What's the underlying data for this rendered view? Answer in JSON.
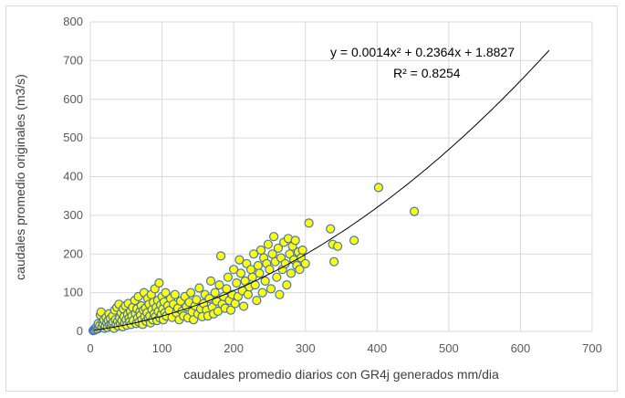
{
  "chart_data": {
    "type": "scatter",
    "xlabel": "caudales  promedio diarios con GR4j generados mm/dia",
    "ylabel": "caudales promedio  originales (m3/s)",
    "xlim": [
      0,
      700
    ],
    "ylim": [
      0,
      800
    ],
    "x_ticks": [
      "0",
      "100",
      "200",
      "300",
      "400",
      "500",
      "600",
      "700"
    ],
    "y_ticks": [
      "0",
      "100",
      "200",
      "300",
      "400",
      "500",
      "600",
      "700",
      "800"
    ],
    "grid": true,
    "legend": "none",
    "colors": {
      "marker_fill": "#ffff00",
      "marker_stroke": "#4472c4",
      "trend": "#000000",
      "grid": "#d9d9d9"
    },
    "trendline": {
      "type": "polynomial",
      "coefficients": [
        0.0014,
        0.2364,
        1.8827
      ],
      "x_range": [
        5,
        640
      ],
      "equation_text": "y = 0.0014x² + 0.2364x + 1.8827",
      "r2_text": "R² = 0.8254"
    },
    "series": [
      {
        "points": [
          [
            4,
            2
          ],
          [
            5,
            4
          ],
          [
            6,
            3
          ],
          [
            7,
            8
          ],
          [
            8,
            5
          ],
          [
            9,
            12
          ],
          [
            10,
            6
          ],
          [
            11,
            20
          ],
          [
            12,
            9
          ],
          [
            13,
            15
          ],
          [
            14,
            42
          ],
          [
            15,
            50
          ],
          [
            16,
            11
          ],
          [
            17,
            25
          ],
          [
            18,
            18
          ],
          [
            19,
            30
          ],
          [
            20,
            8
          ],
          [
            21,
            14
          ],
          [
            22,
            36
          ],
          [
            23,
            22
          ],
          [
            24,
            10
          ],
          [
            25,
            28
          ],
          [
            26,
            45
          ],
          [
            27,
            16
          ],
          [
            28,
            33
          ],
          [
            29,
            12
          ],
          [
            30,
            20
          ],
          [
            31,
            40
          ],
          [
            32,
            24
          ],
          [
            33,
            8
          ],
          [
            34,
            55
          ],
          [
            35,
            30
          ],
          [
            36,
            18
          ],
          [
            37,
            62
          ],
          [
            38,
            26
          ],
          [
            39,
            14
          ],
          [
            40,
            70
          ],
          [
            41,
            35
          ],
          [
            42,
            20
          ],
          [
            43,
            48
          ],
          [
            44,
            28
          ],
          [
            45,
            12
          ],
          [
            46,
            58
          ],
          [
            47,
            38
          ],
          [
            48,
            22
          ],
          [
            49,
            66
          ],
          [
            50,
            30
          ],
          [
            51,
            16
          ],
          [
            52,
            44
          ],
          [
            53,
            72
          ],
          [
            54,
            34
          ],
          [
            55,
            25
          ],
          [
            56,
            52
          ],
          [
            57,
            18
          ],
          [
            58,
            40
          ],
          [
            59,
            62
          ],
          [
            60,
            28
          ],
          [
            62,
            80
          ],
          [
            63,
            46
          ],
          [
            64,
            20
          ],
          [
            65,
            58
          ],
          [
            66,
            35
          ],
          [
            67,
            90
          ],
          [
            68,
            24
          ],
          [
            69,
            50
          ],
          [
            70,
            42
          ],
          [
            71,
            66
          ],
          [
            72,
            30
          ],
          [
            73,
            18
          ],
          [
            74,
            55
          ],
          [
            75,
            100
          ],
          [
            76,
            38
          ],
          [
            77,
            60
          ],
          [
            78,
            26
          ],
          [
            79,
            48
          ],
          [
            80,
            85
          ],
          [
            81,
            34
          ],
          [
            82,
            70
          ],
          [
            83,
            40
          ],
          [
            84,
            22
          ],
          [
            85,
            95
          ],
          [
            86,
            56
          ],
          [
            87,
            30
          ],
          [
            88,
            75
          ],
          [
            89,
            45
          ],
          [
            90,
            110
          ],
          [
            91,
            38
          ],
          [
            92,
            62
          ],
          [
            93,
            28
          ],
          [
            94,
            80
          ],
          [
            95,
            52
          ],
          [
            96,
            125
          ],
          [
            97,
            35
          ],
          [
            98,
            68
          ],
          [
            99,
            44
          ],
          [
            100,
            90
          ],
          [
            101,
            58
          ],
          [
            102,
            30
          ],
          [
            103,
            76
          ],
          [
            104,
            48
          ],
          [
            105,
            100
          ],
          [
            106,
            40
          ],
          [
            108,
            66
          ],
          [
            110,
            54
          ],
          [
            112,
            85
          ],
          [
            114,
            36
          ],
          [
            116,
            70
          ],
          [
            118,
            95
          ],
          [
            120,
            48
          ],
          [
            122,
            60
          ],
          [
            124,
            30
          ],
          [
            126,
            78
          ],
          [
            128,
            52
          ],
          [
            130,
            40
          ],
          [
            132,
            90
          ],
          [
            134,
            64
          ],
          [
            136,
            35
          ],
          [
            138,
            75
          ],
          [
            140,
            100
          ],
          [
            142,
            50
          ],
          [
            144,
            30
          ],
          [
            146,
            66
          ],
          [
            148,
            82
          ],
          [
            150,
            45
          ],
          [
            152,
            112
          ],
          [
            154,
            58
          ],
          [
            156,
            38
          ],
          [
            158,
            72
          ],
          [
            160,
            95
          ],
          [
            162,
            55
          ],
          [
            164,
            40
          ],
          [
            166,
            85
          ],
          [
            168,
            130
          ],
          [
            170,
            62
          ],
          [
            172,
            45
          ],
          [
            174,
            100
          ],
          [
            176,
            78
          ],
          [
            178,
            52
          ],
          [
            180,
            120
          ],
          [
            182,
            195
          ],
          [
            184,
            70
          ],
          [
            186,
            90
          ],
          [
            188,
            60
          ],
          [
            190,
            110
          ],
          [
            192,
            140
          ],
          [
            194,
            80
          ],
          [
            196,
            55
          ],
          [
            198,
            95
          ],
          [
            200,
            160
          ],
          [
            202,
            72
          ],
          [
            204,
            125
          ],
          [
            206,
            90
          ],
          [
            208,
            185
          ],
          [
            210,
            150
          ],
          [
            212,
            105
          ],
          [
            214,
            65
          ],
          [
            216,
            130
          ],
          [
            218,
            175
          ],
          [
            220,
            95
          ],
          [
            222,
            115
          ],
          [
            224,
            160
          ],
          [
            226,
            140
          ],
          [
            228,
            200
          ],
          [
            230,
            120
          ],
          [
            232,
            80
          ],
          [
            234,
            170
          ],
          [
            236,
            150
          ],
          [
            238,
            210
          ],
          [
            240,
            100
          ],
          [
            242,
            190
          ],
          [
            244,
            130
          ],
          [
            246,
            175
          ],
          [
            248,
            225
          ],
          [
            250,
            160
          ],
          [
            252,
            110
          ],
          [
            254,
            200
          ],
          [
            256,
            245
          ],
          [
            258,
            180
          ],
          [
            260,
            140
          ],
          [
            262,
            215
          ],
          [
            264,
            95
          ],
          [
            266,
            190
          ],
          [
            268,
            160
          ],
          [
            270,
            230
          ],
          [
            272,
            175
          ],
          [
            274,
            120
          ],
          [
            276,
            240
          ],
          [
            278,
            200
          ],
          [
            280,
            150
          ],
          [
            282,
            220
          ],
          [
            284,
            185
          ],
          [
            286,
            235
          ],
          [
            288,
            170
          ],
          [
            290,
            205
          ],
          [
            292,
            160
          ],
          [
            294,
            190
          ],
          [
            296,
            210
          ],
          [
            300,
            175
          ],
          [
            305,
            280
          ],
          [
            335,
            265
          ],
          [
            338,
            225
          ],
          [
            345,
            220
          ],
          [
            340,
            180
          ],
          [
            368,
            235
          ],
          [
            402,
            372
          ],
          [
            452,
            310
          ]
        ]
      }
    ]
  }
}
